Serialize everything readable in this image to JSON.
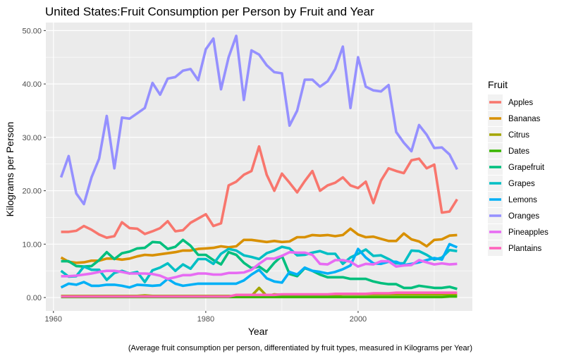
{
  "chart_data": {
    "type": "line",
    "title": "United States:Fruit Consumption per Person by Fruit and Year",
    "xlabel": "Year",
    "ylabel": "Kilograms per Person",
    "caption": "(Average fruit consumption per person, differentiated by fruit types, measured in Kilograms per Year)",
    "legend_title": "Fruit",
    "legend_position": "right",
    "grid": true,
    "xlim": [
      1959,
      2015
    ],
    "ylim": [
      -2.5,
      51.5
    ],
    "x_ticks": [
      1960,
      1980,
      2000
    ],
    "x_tick_labels": [
      "1960",
      "1980",
      "2000"
    ],
    "y_ticks": [
      0,
      10,
      20,
      30,
      40,
      50
    ],
    "y_tick_labels": [
      "0.00",
      "10.00",
      "20.00",
      "30.00",
      "40.00",
      "50.00"
    ],
    "series": [
      {
        "name": "Apples",
        "color": "#F8766D",
        "x_start": 1961,
        "values": [
          12.3,
          12.3,
          12.5,
          13.4,
          12.7,
          11.8,
          11.2,
          11.5,
          14.1,
          13.0,
          12.9,
          11.9,
          12.4,
          13.0,
          14.3,
          12.4,
          12.6,
          14.0,
          14.8,
          15.6,
          13.4,
          13.9,
          21.0,
          21.7,
          23.0,
          23.7,
          28.3,
          23.0,
          20.0,
          23.2,
          21.5,
          19.7,
          21.8,
          23.7,
          20.0,
          21.0,
          21.5,
          22.5,
          21.0,
          20.5,
          21.7,
          17.7,
          21.9,
          24.2,
          23.7,
          23.3,
          25.7,
          26.0,
          24.2,
          24.9,
          15.9,
          16.1,
          18.4
        ]
      },
      {
        "name": "Bananas",
        "color": "#D89000",
        "x_start": 1961,
        "values": [
          7.5,
          6.7,
          6.5,
          6.6,
          6.9,
          6.9,
          7.3,
          7.3,
          7.1,
          7.3,
          7.7,
          8.0,
          7.9,
          8.1,
          8.3,
          8.5,
          8.8,
          8.8,
          9.1,
          9.2,
          9.3,
          9.6,
          9.4,
          9.6,
          10.8,
          10.8,
          10.6,
          10.4,
          10.6,
          10.4,
          10.5,
          11.3,
          11.3,
          11.7,
          11.6,
          11.7,
          11.5,
          11.7,
          12.9,
          11.8,
          11.3,
          11.4,
          11.0,
          10.6,
          10.6,
          12.0,
          10.9,
          10.5,
          9.6,
          10.8,
          10.9,
          11.6,
          11.7
        ]
      },
      {
        "name": "Citrus",
        "color": "#A3A500",
        "x_start": 1961,
        "values": [
          0.3,
          0.3,
          0.3,
          0.3,
          0.3,
          0.3,
          0.3,
          0.3,
          0.3,
          0.3,
          0.3,
          0.4,
          0.3,
          0.3,
          0.3,
          0.3,
          0.3,
          0.3,
          0.3,
          0.3,
          0.3,
          0.3,
          0.3,
          0.3,
          0.3,
          0.3,
          1.8,
          0.3,
          0.6,
          0.5,
          0.5,
          0.5,
          0.5,
          0.5,
          0.5,
          0.5,
          0.5,
          0.6,
          0.6,
          0.6,
          0.6,
          0.6,
          0.6,
          0.6,
          0.6,
          0.6,
          0.6,
          0.6,
          0.6,
          0.6,
          0.6,
          0.6,
          0.6
        ]
      },
      {
        "name": "Dates",
        "color": "#39B600",
        "x_start": 1961,
        "values": [
          0.1,
          0.1,
          0.1,
          0.1,
          0.1,
          0.1,
          0.1,
          0.1,
          0.1,
          0.1,
          0.1,
          0.1,
          0.1,
          0.1,
          0.1,
          0.1,
          0.1,
          0.1,
          0.1,
          0.1,
          0.1,
          0.1,
          0.1,
          0.1,
          0.1,
          0.1,
          0.1,
          0.1,
          0.1,
          0.1,
          0.1,
          0.1,
          0.1,
          0.1,
          0.1,
          0.1,
          0.1,
          0.1,
          0.1,
          0.1,
          0.1,
          0.1,
          0.1,
          0.1,
          0.1,
          0.1,
          0.1,
          0.1,
          0.1,
          0.1,
          0.1,
          0.2,
          0.2
        ]
      },
      {
        "name": "Grapefruit",
        "color": "#00BF7D",
        "x_start": 1961,
        "values": [
          6.8,
          6.8,
          5.9,
          5.8,
          5.9,
          7.0,
          8.5,
          7.2,
          8.3,
          8.6,
          9.2,
          9.3,
          10.4,
          10.3,
          9.1,
          9.5,
          10.8,
          9.7,
          8.0,
          8.0,
          7.0,
          6.2,
          8.5,
          8.0,
          6.5,
          5.5,
          5.8,
          4.8,
          6.5,
          7.8,
          4.4,
          4.0,
          5.5,
          5.0,
          4.3,
          3.8,
          3.8,
          3.8,
          3.5,
          3.5,
          3.5,
          3.0,
          2.7,
          2.5,
          2.5,
          1.8,
          1.8,
          2.2,
          2.0,
          1.8,
          1.8,
          2.0,
          1.6
        ]
      },
      {
        "name": "Grapes",
        "color": "#00BFC4",
        "x_start": 1961,
        "values": [
          5.0,
          3.9,
          4.0,
          5.8,
          5.2,
          5.2,
          3.3,
          4.6,
          5.0,
          4.5,
          4.8,
          2.9,
          5.1,
          5.6,
          6.4,
          5.0,
          6.2,
          5.4,
          7.2,
          7.2,
          6.3,
          8.2,
          9.1,
          8.8,
          7.9,
          7.6,
          7.2,
          8.3,
          8.8,
          9.5,
          9.2,
          7.9,
          8.0,
          8.4,
          8.7,
          8.2,
          8.2,
          6.3,
          7.5,
          8.2,
          9.0,
          7.8,
          7.9,
          7.2,
          6.4,
          6.4,
          8.8,
          8.7,
          8.0,
          7.1,
          7.5,
          8.9,
          8.7
        ]
      },
      {
        "name": "Lemons",
        "color": "#00B0F6",
        "x_start": 1961,
        "values": [
          1.9,
          2.6,
          2.4,
          2.9,
          2.2,
          2.2,
          2.4,
          2.4,
          2.2,
          1.9,
          2.4,
          2.3,
          2.2,
          2.3,
          3.5,
          2.6,
          2.2,
          2.4,
          2.6,
          2.6,
          2.6,
          2.6,
          2.6,
          2.6,
          3.2,
          4.3,
          5.2,
          3.6,
          3.0,
          2.8,
          4.8,
          4.3,
          5.6,
          5.0,
          4.8,
          4.5,
          4.8,
          5.3,
          6.0,
          9.1,
          7.5,
          6.4,
          6.3,
          6.7,
          6.7,
          6.1,
          6.3,
          6.6,
          7.0,
          7.4,
          7.1,
          10.0,
          9.4
        ]
      },
      {
        "name": "Oranges",
        "color": "#9590FF",
        "x_start": 1961,
        "values": [
          22.5,
          26.5,
          19.5,
          17.5,
          22.5,
          26.0,
          34.0,
          24.2,
          33.7,
          33.5,
          34.5,
          35.5,
          40.2,
          38.0,
          41.0,
          41.3,
          42.5,
          42.8,
          40.7,
          46.5,
          48.5,
          39.0,
          45.0,
          49.0,
          37.0,
          46.3,
          45.5,
          43.5,
          42.2,
          42.0,
          32.2,
          35.0,
          40.8,
          40.8,
          39.5,
          40.5,
          42.8,
          47.0,
          35.5,
          45.0,
          39.5,
          38.8,
          38.6,
          39.8,
          31.0,
          29.0,
          27.4,
          32.3,
          30.5,
          28.0,
          28.1,
          26.8,
          24.0
        ]
      },
      {
        "name": "Pineapples",
        "color": "#E76BF3",
        "x_start": 1961,
        "values": [
          4.0,
          4.0,
          4.1,
          4.3,
          4.5,
          4.8,
          5.0,
          5.0,
          4.8,
          4.5,
          4.5,
          4.5,
          4.4,
          4.1,
          3.5,
          3.8,
          4.2,
          4.2,
          4.5,
          4.5,
          4.3,
          4.3,
          4.6,
          4.6,
          4.7,
          5.2,
          6.3,
          7.3,
          7.3,
          7.8,
          8.5,
          8.4,
          8.4,
          8.0,
          6.3,
          6.2,
          7.0,
          7.0,
          6.7,
          5.8,
          6.3,
          6.2,
          6.8,
          6.8,
          5.8,
          6.0,
          6.1,
          7.0,
          6.6,
          6.2,
          6.4,
          6.2,
          6.3
        ]
      },
      {
        "name": "Plantains",
        "color": "#FF62BC",
        "x_start": 1961,
        "values": [
          0.2,
          0.2,
          0.2,
          0.2,
          0.2,
          0.2,
          0.2,
          0.2,
          0.2,
          0.2,
          0.2,
          0.2,
          0.2,
          0.2,
          0.2,
          0.2,
          0.2,
          0.2,
          0.2,
          0.2,
          0.2,
          0.2,
          0.2,
          0.5,
          0.5,
          0.5,
          0.5,
          0.5,
          0.5,
          0.6,
          0.6,
          0.6,
          0.6,
          0.6,
          0.6,
          0.6,
          0.7,
          0.7,
          0.7,
          0.7,
          0.7,
          0.8,
          0.8,
          0.8,
          0.9,
          0.9,
          0.9,
          0.9,
          0.9,
          0.9,
          0.9,
          0.9,
          0.9
        ]
      }
    ]
  }
}
